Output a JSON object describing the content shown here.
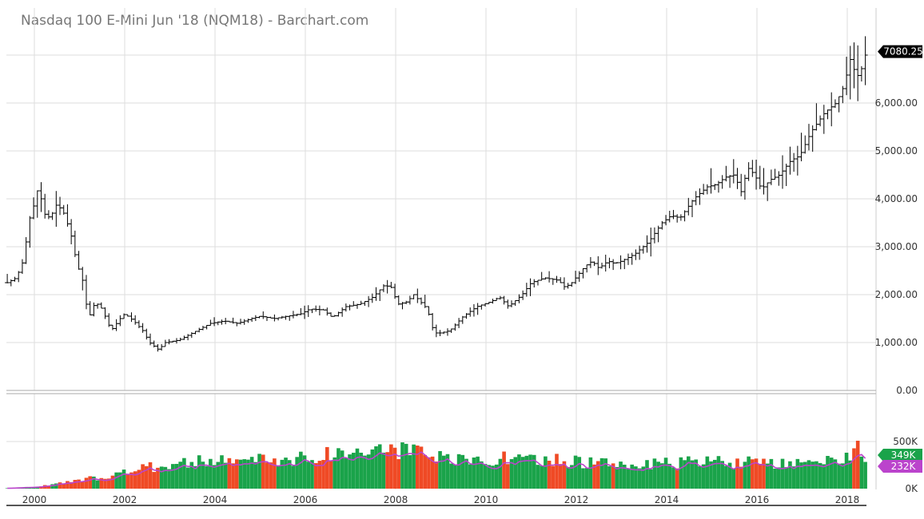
{
  "title": "Nasdaq 100 E-Mini Jun '18 (NQM18) - Barchart.com",
  "chart_data": {
    "type": "ohlc-bar-with-volume",
    "interval": "monthly",
    "price_axis": {
      "min": 0,
      "max": 7000,
      "ticks": [
        "0.00",
        "1,000.00",
        "2,000.00",
        "3,000.00",
        "4,000.00",
        "5,000.00",
        "6,000.00"
      ]
    },
    "last_price_label": "7080.25",
    "last_price": 7080.25,
    "volume_axis": {
      "min": 0,
      "max": 500000,
      "ticks": [
        "0K",
        "500K"
      ]
    },
    "volume_last_label": "349K",
    "volume_avg_label": "232K",
    "x_labels": [
      "2000",
      "2002",
      "2004",
      "2006",
      "2008",
      "2010",
      "2012",
      "2014",
      "2016",
      "2018"
    ],
    "year_range": [
      1999.4,
      2018.45
    ],
    "anchors": [
      [
        1999.4,
        2250
      ],
      [
        1999.6,
        2350
      ],
      [
        1999.75,
        2700
      ],
      [
        1999.9,
        3600
      ],
      [
        2000.0,
        3900
      ],
      [
        2000.1,
        4300
      ],
      [
        2000.2,
        3700
      ],
      [
        2000.35,
        3600
      ],
      [
        2000.5,
        3900
      ],
      [
        2000.65,
        3700
      ],
      [
        2000.8,
        3300
      ],
      [
        2000.95,
        2600
      ],
      [
        2001.05,
        2400
      ],
      [
        2001.2,
        1500
      ],
      [
        2001.35,
        1850
      ],
      [
        2001.5,
        1700
      ],
      [
        2001.7,
        1250
      ],
      [
        2001.9,
        1500
      ],
      [
        2002.0,
        1600
      ],
      [
        2002.2,
        1450
      ],
      [
        2002.4,
        1250
      ],
      [
        2002.55,
        1000
      ],
      [
        2002.75,
        850
      ],
      [
        2002.9,
        1000
      ],
      [
        2003.2,
        1050
      ],
      [
        2003.5,
        1200
      ],
      [
        2003.9,
        1400
      ],
      [
        2004.2,
        1450
      ],
      [
        2004.5,
        1400
      ],
      [
        2004.8,
        1500
      ],
      [
        2005.0,
        1550
      ],
      [
        2005.3,
        1500
      ],
      [
        2005.6,
        1550
      ],
      [
        2005.9,
        1600
      ],
      [
        2006.1,
        1700
      ],
      [
        2006.4,
        1680
      ],
      [
        2006.6,
        1520
      ],
      [
        2006.9,
        1750
      ],
      [
        2007.2,
        1800
      ],
      [
        2007.5,
        1950
      ],
      [
        2007.75,
        2200
      ],
      [
        2007.9,
        2150
      ],
      [
        2008.05,
        1800
      ],
      [
        2008.25,
        1850
      ],
      [
        2008.4,
        2000
      ],
      [
        2008.55,
        1850
      ],
      [
        2008.7,
        1700
      ],
      [
        2008.85,
        1200
      ],
      [
        2009.0,
        1200
      ],
      [
        2009.2,
        1250
      ],
      [
        2009.5,
        1550
      ],
      [
        2009.8,
        1750
      ],
      [
        2010.1,
        1850
      ],
      [
        2010.3,
        1950
      ],
      [
        2010.5,
        1750
      ],
      [
        2010.8,
        2000
      ],
      [
        2011.0,
        2250
      ],
      [
        2011.3,
        2350
      ],
      [
        2011.6,
        2300
      ],
      [
        2011.75,
        2150
      ],
      [
        2011.9,
        2250
      ],
      [
        2012.2,
        2600
      ],
      [
        2012.35,
        2700
      ],
      [
        2012.5,
        2550
      ],
      [
        2012.7,
        2700
      ],
      [
        2012.85,
        2650
      ],
      [
        2013.0,
        2700
      ],
      [
        2013.3,
        2850
      ],
      [
        2013.6,
        3100
      ],
      [
        2013.9,
        3500
      ],
      [
        2014.1,
        3650
      ],
      [
        2014.3,
        3600
      ],
      [
        2014.6,
        4000
      ],
      [
        2014.9,
        4250
      ],
      [
        2015.1,
        4300
      ],
      [
        2015.3,
        4450
      ],
      [
        2015.5,
        4500
      ],
      [
        2015.65,
        4150
      ],
      [
        2015.8,
        4650
      ],
      [
        2015.95,
        4500
      ],
      [
        2016.1,
        4200
      ],
      [
        2016.3,
        4400
      ],
      [
        2016.5,
        4500
      ],
      [
        2016.75,
        4800
      ],
      [
        2016.95,
        4900
      ],
      [
        2017.2,
        5400
      ],
      [
        2017.5,
        5800
      ],
      [
        2017.75,
        6000
      ],
      [
        2017.95,
        6400
      ],
      [
        2018.05,
        6950
      ],
      [
        2018.15,
        6700
      ],
      [
        2018.25,
        6550
      ],
      [
        2018.35,
        6800
      ],
      [
        2018.42,
        7080
      ]
    ],
    "volume_anchors": [
      [
        1999.4,
        5000
      ],
      [
        2000.0,
        20000
      ],
      [
        2000.5,
        50000
      ],
      [
        2001.0,
        90000
      ],
      [
        2001.5,
        130000
      ],
      [
        2002.0,
        180000
      ],
      [
        2002.5,
        230000
      ],
      [
        2003.0,
        270000
      ],
      [
        2003.5,
        290000
      ],
      [
        2004.0,
        300000
      ],
      [
        2004.5,
        310000
      ],
      [
        2005.0,
        320000
      ],
      [
        2005.5,
        320000
      ],
      [
        2006.0,
        330000
      ],
      [
        2006.5,
        380000
      ],
      [
        2007.0,
        400000
      ],
      [
        2007.5,
        430000
      ],
      [
        2008.0,
        430000
      ],
      [
        2008.5,
        380000
      ],
      [
        2009.0,
        330000
      ],
      [
        2009.5,
        300000
      ],
      [
        2010.0,
        320000
      ],
      [
        2010.5,
        340000
      ],
      [
        2011.0,
        300000
      ],
      [
        2011.5,
        310000
      ],
      [
        2012.0,
        300000
      ],
      [
        2012.5,
        280000
      ],
      [
        2013.0,
        270000
      ],
      [
        2013.5,
        260000
      ],
      [
        2014.0,
        270000
      ],
      [
        2014.5,
        290000
      ],
      [
        2015.0,
        300000
      ],
      [
        2015.5,
        290000
      ],
      [
        2016.0,
        280000
      ],
      [
        2016.5,
        260000
      ],
      [
        2017.0,
        260000
      ],
      [
        2017.5,
        280000
      ],
      [
        2018.0,
        350000
      ],
      [
        2018.2,
        500000
      ],
      [
        2018.4,
        349000
      ]
    ],
    "colors": {
      "up_volume": "#1aa34a",
      "down_volume": "#ef4a25",
      "volume_average_line": "#bb44cc",
      "price_bars": "#000000",
      "grid": "#dddddd",
      "last_price_badge": "#000000",
      "volume_badge": "#1aa34a",
      "average_badge": "#bb44cc"
    }
  }
}
